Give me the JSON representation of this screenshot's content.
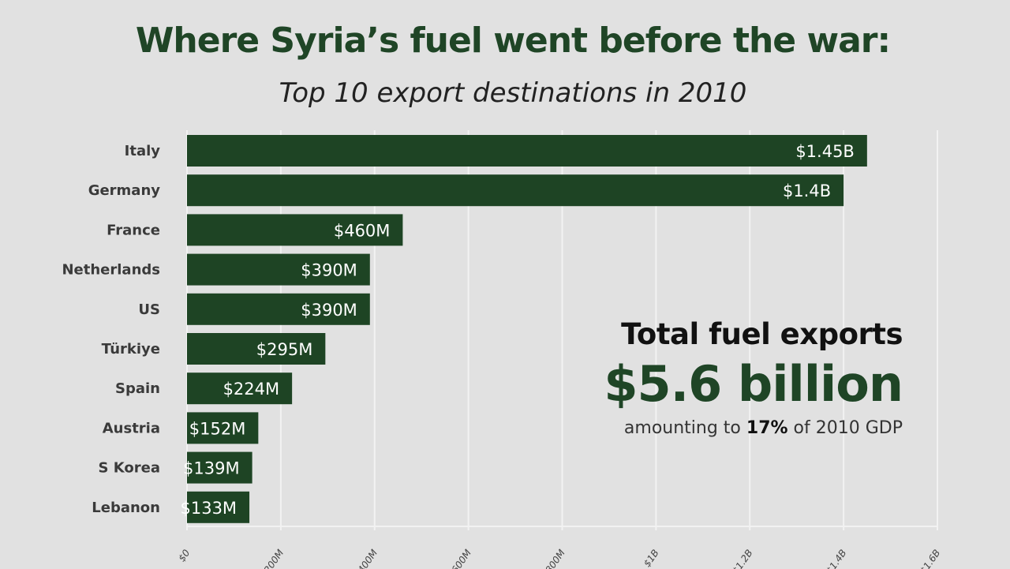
{
  "chart_data": {
    "type": "bar",
    "orientation": "horizontal",
    "title": "Where Syria’s fuel went before the war:",
    "subtitle": "Top 10 export destinations in 2010",
    "categories": [
      "Italy",
      "Germany",
      "France",
      "Netherlands",
      "US",
      "Türkiye",
      "Spain",
      "Austria",
      "S Korea",
      "Lebanon"
    ],
    "values": [
      1450,
      1400,
      460,
      390,
      390,
      295,
      224,
      152,
      139,
      133
    ],
    "value_unit": "million USD",
    "data_labels": [
      "$1.45B",
      "$1.4B",
      "$460M",
      "$390M",
      "$390M",
      "$295M",
      "$224M",
      "$152M",
      "$139M",
      "$133M"
    ],
    "xlim": [
      0,
      1600
    ],
    "x_ticks": [
      0,
      200,
      400,
      600,
      800,
      1000,
      1200,
      1400,
      1600
    ],
    "x_tick_labels": [
      "$0",
      "$200M",
      "$400M",
      "$600M",
      "$800M",
      "$1B",
      "$1.2B",
      "$1.4B",
      "$1.6B"
    ],
    "grid": true,
    "bar_color": "#1e4424"
  },
  "annotation": {
    "heading": "Total fuel exports",
    "value": "$5.6 billion",
    "note_prefix": "amounting to ",
    "note_bold": "17%",
    "note_suffix": " of 2010 GDP"
  }
}
